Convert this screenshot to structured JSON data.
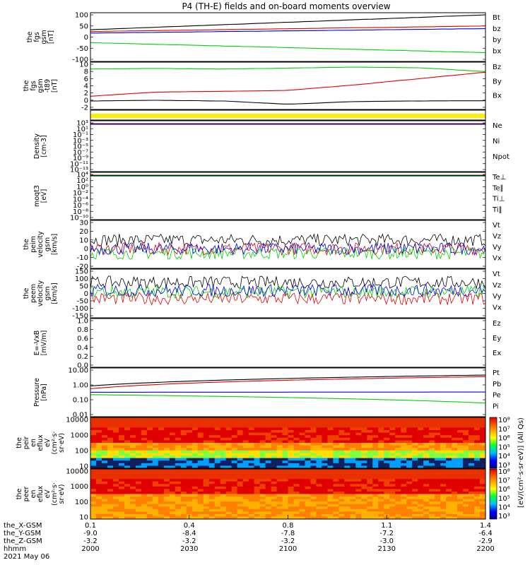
{
  "title": "P4 (TH-E) fields and on-board moments overview",
  "colors": {
    "black": "#000000",
    "red": "#e00000",
    "green": "#00d000",
    "blue": "#0000e0",
    "yellow": "#ffee00"
  },
  "chart_data": [
    {
      "type": "line",
      "ylabel": [
        "the",
        "fgs",
        "gsm",
        "[nT]"
      ],
      "yticks": [
        "100",
        "50",
        "0",
        "-50",
        "-100"
      ],
      "ylim": [
        -100,
        100
      ],
      "series": [
        {
          "name": "Bt",
          "color": "black",
          "values": [
            33,
            100
          ]
        },
        {
          "name": "bz",
          "color": "red",
          "values": [
            25,
            50
          ]
        },
        {
          "name": "by",
          "color": "green",
          "values": [
            -25,
            -70
          ]
        },
        {
          "name": "bx",
          "color": "blue",
          "values": [
            18,
            38
          ]
        }
      ]
    },
    {
      "type": "line",
      "ylabel": [
        "the",
        "fgs",
        "gsm",
        "-t89",
        "[nT]"
      ],
      "yticks": [
        "10",
        "8",
        "6",
        "4",
        "2",
        "0",
        "-2"
      ],
      "ylim": [
        -3,
        10.5
      ],
      "series": [
        {
          "name": "Bz",
          "color": "red",
          "values": [
            0.5,
            1.8,
            2,
            2.3,
            4,
            6,
            8
          ]
        },
        {
          "name": "By",
          "color": "green",
          "values": [
            9,
            9.2,
            9,
            9.3,
            9.6,
            9.4,
            8.2
          ]
        },
        {
          "name": "Bx",
          "color": "black",
          "values": [
            -1,
            -0.8,
            -1,
            -2,
            -1.2,
            -1,
            -0.9
          ]
        }
      ]
    },
    {
      "type": "area",
      "series": [
        {
          "color": "yellow",
          "values": [
            1,
            1
          ]
        }
      ]
    },
    {
      "type": "line",
      "ylabel": [
        "Density",
        "[cm-3]"
      ],
      "yticks": [
        "10³",
        "10¹",
        "10⁻¹",
        "10⁻³",
        "10⁻⁵",
        "10⁻⁷",
        "10⁻⁹",
        "10⁻¹¹",
        "10⁻¹³"
      ],
      "ylog": true,
      "series": [
        {
          "name": "Ne",
          "color": "red",
          "values": [
            1,
            1
          ]
        },
        {
          "name": "Ni",
          "color": "black",
          "values": [
            1,
            1
          ]
        },
        {
          "name": "Npot",
          "color": "blue",
          "values": [
            1,
            1
          ]
        }
      ]
    },
    {
      "type": "line",
      "ylabel": [
        "moqt3",
        "[eV]"
      ],
      "yticks": [
        "10⁴",
        "10²",
        "10⁰",
        "10⁻²",
        "10⁻⁴",
        "10⁻⁶",
        "10⁻⁸",
        "10⁻¹⁰"
      ],
      "ylog": true,
      "series": [
        {
          "name": "Te⊥",
          "color": "red",
          "values": [
            1000,
            1000
          ]
        },
        {
          "name": "Te∥",
          "color": "black",
          "values": [
            1000,
            1000
          ]
        },
        {
          "name": "Ti⊥",
          "color": "blue",
          "values": [
            1000,
            1000
          ]
        },
        {
          "name": "Ti∥",
          "color": "green",
          "values": [
            1000,
            1000
          ]
        }
      ]
    },
    {
      "type": "line",
      "ylabel": [
        "the",
        "peim",
        "velocity",
        "gsm",
        "[km/s]"
      ],
      "yticks": [
        "30",
        "20",
        "10",
        "0",
        "-10",
        "-20"
      ],
      "ylim": [
        -20,
        30
      ],
      "series": [
        {
          "name": "Vt",
          "color": "black",
          "values": [
            10,
            10
          ]
        },
        {
          "name": "Vz",
          "color": "red",
          "values": [
            0,
            0
          ]
        },
        {
          "name": "Vy",
          "color": "green",
          "values": [
            -5,
            -5
          ]
        },
        {
          "name": "Vx",
          "color": "blue",
          "values": [
            0,
            0
          ]
        }
      ]
    },
    {
      "type": "line",
      "ylabel": [
        "the",
        "peem",
        "velocity",
        "gsm",
        "[km/s]"
      ],
      "yticks": [
        "150",
        "100",
        "50",
        "0",
        "-50",
        "-100",
        "-150"
      ],
      "ylim": [
        -150,
        150
      ],
      "series": [
        {
          "name": "Vt",
          "color": "black",
          "values": [
            75,
            75
          ]
        },
        {
          "name": "Vz",
          "color": "red",
          "values": [
            -35,
            -35
          ]
        },
        {
          "name": "Vy",
          "color": "green",
          "values": [
            10,
            10
          ]
        },
        {
          "name": "Vx",
          "color": "blue",
          "values": [
            20,
            20
          ]
        }
      ]
    },
    {
      "type": "line",
      "ylabel": [
        "E=-VxB",
        "[mV/m]"
      ],
      "yticks": [
        "1.0",
        "0.8",
        "0.6",
        "0.4",
        "0.2",
        "0.0"
      ],
      "ylim": [
        0,
        1
      ],
      "series": [
        {
          "name": "Ez",
          "color": "red",
          "values": []
        },
        {
          "name": "Ey",
          "color": "green",
          "values": []
        },
        {
          "name": "Ex",
          "color": "blue",
          "values": []
        }
      ]
    },
    {
      "type": "line",
      "ylabel": [
        "Pressure",
        "[nPa]"
      ],
      "yticks": [
        "10.00",
        "1.00",
        "0.10",
        "0.01"
      ],
      "ylog": true,
      "ylim": [
        0.01,
        10
      ],
      "series": [
        {
          "name": "Pt",
          "color": "black",
          "values": [
            0.85,
            4.6
          ]
        },
        {
          "name": "Pb",
          "color": "red",
          "values": [
            0.55,
            3.6
          ]
        },
        {
          "name": "Pe",
          "color": "green",
          "values": [
            0.22,
            0.06
          ]
        },
        {
          "name": "Pi",
          "color": "blue",
          "values": [
            0.32,
            0.33
          ]
        }
      ]
    },
    {
      "type": "heatmap",
      "ylabel": [
        "the",
        "peir",
        "en",
        "eflux",
        "eV",
        "(cm²·s·",
        "sr·eV)"
      ],
      "yticks": [
        "10000",
        "1000",
        "100",
        "10"
      ],
      "ylog": true
    },
    {
      "type": "heatmap",
      "ylabel": [
        "the",
        "peer",
        "en",
        "eflux",
        "eV",
        "(cm²·s·",
        "sr·eV)"
      ],
      "yticks": [
        "10000",
        "1000",
        "100",
        "10"
      ],
      "ylog": true
    }
  ],
  "colorbar": {
    "top_ticks": [
      "10⁸",
      "10⁷",
      "10⁶",
      "10⁵",
      "10⁴",
      "10³"
    ],
    "bottom_ticks": [
      "10⁸",
      "10⁷",
      "10⁶",
      "10⁵",
      "10⁴",
      "10³"
    ],
    "label": "[eV/(cm²·s·sr·eV)] (All Qs)"
  },
  "xaxis": {
    "rows": [
      {
        "label": "the_X-GSM",
        "values": [
          "0.1",
          "0.4",
          "0.8",
          "1.1",
          "1.4"
        ]
      },
      {
        "label": "the_Y-GSM",
        "values": [
          "-9.0",
          "-8.4",
          "-7.8",
          "-7.2",
          "-6.4"
        ]
      },
      {
        "label": "the_Z-GSM",
        "values": [
          "-3.2",
          "-3.2",
          "-3.2",
          "-3.0",
          "-2.9"
        ]
      },
      {
        "label": "hhmm",
        "values": [
          "2000",
          "2030",
          "2100",
          "2130",
          "2200"
        ]
      }
    ],
    "date": "2021 May 06"
  }
}
